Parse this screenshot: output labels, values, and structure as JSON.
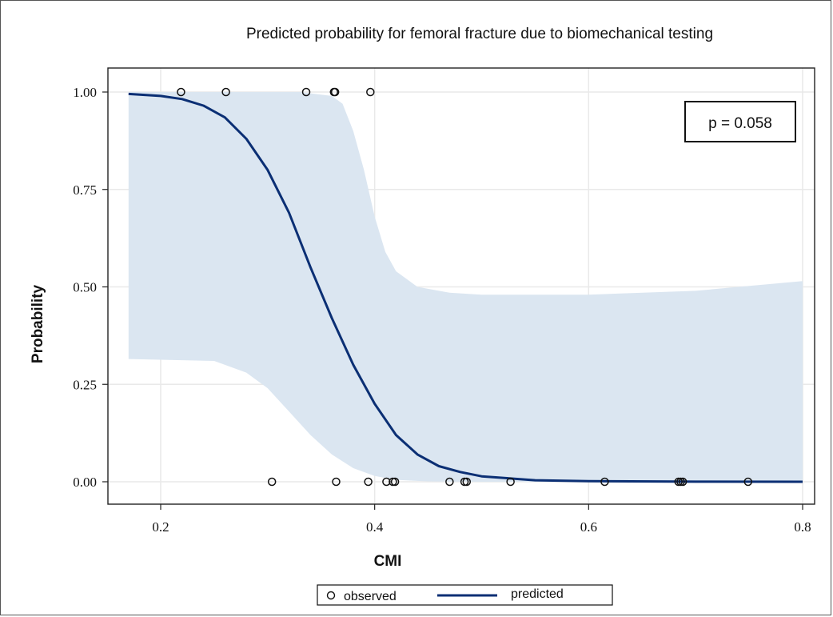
{
  "chart_data": {
    "type": "line",
    "title": "Predicted probability for femoral fracture due to biomechanical testing",
    "xlabel": "CMI",
    "ylabel": "Probability",
    "xlim": [
      0.165,
      0.805
    ],
    "ylim": [
      -0.05,
      1.05
    ],
    "xticks": [
      {
        "value": 0.2,
        "label": "0.2"
      },
      {
        "value": 0.4,
        "label": "0.4"
      },
      {
        "value": 0.6,
        "label": "0.6"
      },
      {
        "value": 0.8,
        "label": "0.8"
      }
    ],
    "yticks": [
      {
        "value": 0.0,
        "label": "0.00"
      },
      {
        "value": 0.25,
        "label": "0.25"
      },
      {
        "value": 0.5,
        "label": "0.50"
      },
      {
        "value": 0.75,
        "label": "0.75"
      },
      {
        "value": 1.0,
        "label": "1.00"
      }
    ],
    "grid": true,
    "annotation": "p = 0.058",
    "legend": {
      "placement": "bottom",
      "entries": [
        "observed",
        "predicted"
      ]
    },
    "series": [
      {
        "name": "observed",
        "kind": "scatter",
        "points": [
          {
            "x": 0.219,
            "y": 1
          },
          {
            "x": 0.261,
            "y": 1
          },
          {
            "x": 0.336,
            "y": 1
          },
          {
            "x": 0.362,
            "y": 1
          },
          {
            "x": 0.363,
            "y": 1
          },
          {
            "x": 0.396,
            "y": 1
          },
          {
            "x": 0.304,
            "y": 0
          },
          {
            "x": 0.364,
            "y": 0
          },
          {
            "x": 0.394,
            "y": 0
          },
          {
            "x": 0.411,
            "y": 0
          },
          {
            "x": 0.417,
            "y": 0
          },
          {
            "x": 0.419,
            "y": 0
          },
          {
            "x": 0.47,
            "y": 0
          },
          {
            "x": 0.484,
            "y": 0
          },
          {
            "x": 0.486,
            "y": 0
          },
          {
            "x": 0.527,
            "y": 0
          },
          {
            "x": 0.615,
            "y": 0
          },
          {
            "x": 0.684,
            "y": 0
          },
          {
            "x": 0.686,
            "y": 0
          },
          {
            "x": 0.688,
            "y": 0
          },
          {
            "x": 0.749,
            "y": 0
          }
        ]
      },
      {
        "name": "predicted",
        "kind": "line",
        "color": "#0b2f74",
        "points": [
          {
            "x": 0.17,
            "y": 0.995
          },
          {
            "x": 0.2,
            "y": 0.99
          },
          {
            "x": 0.22,
            "y": 0.982
          },
          {
            "x": 0.24,
            "y": 0.965
          },
          {
            "x": 0.26,
            "y": 0.935
          },
          {
            "x": 0.28,
            "y": 0.88
          },
          {
            "x": 0.3,
            "y": 0.8
          },
          {
            "x": 0.32,
            "y": 0.69
          },
          {
            "x": 0.34,
            "y": 0.55
          },
          {
            "x": 0.36,
            "y": 0.42
          },
          {
            "x": 0.38,
            "y": 0.3
          },
          {
            "x": 0.4,
            "y": 0.2
          },
          {
            "x": 0.42,
            "y": 0.12
          },
          {
            "x": 0.44,
            "y": 0.07
          },
          {
            "x": 0.46,
            "y": 0.04
          },
          {
            "x": 0.48,
            "y": 0.025
          },
          {
            "x": 0.5,
            "y": 0.014
          },
          {
            "x": 0.55,
            "y": 0.004
          },
          {
            "x": 0.6,
            "y": 0.0015
          },
          {
            "x": 0.7,
            "y": 0.0003
          },
          {
            "x": 0.8,
            "y": 0.0001
          }
        ]
      },
      {
        "name": "confidence band",
        "kind": "band",
        "color": "#dbe6f1",
        "upper": [
          {
            "x": 0.17,
            "y": 1.0
          },
          {
            "x": 0.33,
            "y": 1.0
          },
          {
            "x": 0.36,
            "y": 0.99
          },
          {
            "x": 0.37,
            "y": 0.97
          },
          {
            "x": 0.38,
            "y": 0.9
          },
          {
            "x": 0.39,
            "y": 0.8
          },
          {
            "x": 0.4,
            "y": 0.68
          },
          {
            "x": 0.41,
            "y": 0.59
          },
          {
            "x": 0.42,
            "y": 0.54
          },
          {
            "x": 0.44,
            "y": 0.5
          },
          {
            "x": 0.47,
            "y": 0.485
          },
          {
            "x": 0.5,
            "y": 0.48
          },
          {
            "x": 0.6,
            "y": 0.48
          },
          {
            "x": 0.7,
            "y": 0.49
          },
          {
            "x": 0.8,
            "y": 0.515
          }
        ],
        "lower": [
          {
            "x": 0.17,
            "y": 0.315
          },
          {
            "x": 0.25,
            "y": 0.31
          },
          {
            "x": 0.28,
            "y": 0.28
          },
          {
            "x": 0.3,
            "y": 0.24
          },
          {
            "x": 0.32,
            "y": 0.18
          },
          {
            "x": 0.34,
            "y": 0.12
          },
          {
            "x": 0.36,
            "y": 0.07
          },
          {
            "x": 0.38,
            "y": 0.035
          },
          {
            "x": 0.4,
            "y": 0.015
          },
          {
            "x": 0.42,
            "y": 0.005
          },
          {
            "x": 0.45,
            "y": 0.001
          },
          {
            "x": 0.5,
            "y": 0.0
          },
          {
            "x": 0.8,
            "y": 0.0
          }
        ]
      }
    ]
  }
}
